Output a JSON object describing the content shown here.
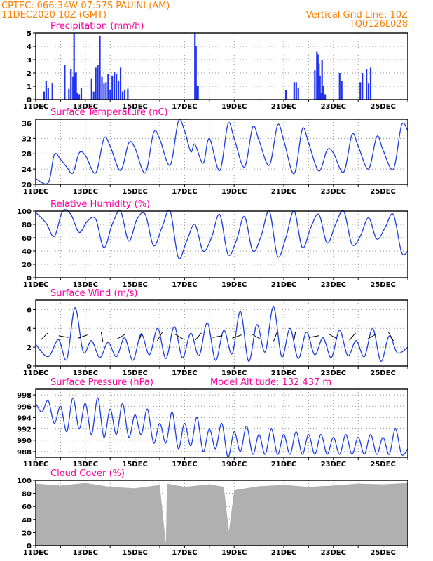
{
  "header": {
    "line1": "CPTEC:  066:34W-07:57S  PAUINI (AM)",
    "line2": "11DEC2020 10Z (GMT)",
    "grid_note": "Vertical Grid Line: 10Z",
    "run_code": "TQ0126L028"
  },
  "colors": {
    "header": "#ff8000",
    "title": "#ff00a0",
    "series": "#1f3fe0",
    "cloud": "#b0b0b0"
  },
  "x_axis": {
    "date_labels": [
      "11DEC",
      "13DEC",
      "15DEC",
      "17DEC",
      "19DEC",
      "21DEC",
      "23DEC",
      "25DEC"
    ],
    "start": "2020-12-11T10:00Z",
    "end": "2020-12-26T10:00Z"
  },
  "chart_data": [
    {
      "type": "bar",
      "title": "Precipitation (mm/h)",
      "ylim": [
        0,
        5
      ],
      "yticks": [
        0,
        1,
        2,
        3,
        4,
        5
      ],
      "grid": true,
      "series": [
        {
          "x": [
            "2020-12-11T18:00Z",
            "2020-12-11T20:00Z",
            "2020-12-11T22:00Z",
            "2020-12-12T02:00Z",
            "2020-12-12T14:00Z",
            "2020-12-12T18:00Z",
            "2020-12-12T20:00Z",
            "2020-12-12T22:00Z",
            "2020-12-12T23:00Z",
            "2020-12-13T00:00Z",
            "2020-12-13T01:00Z",
            "2020-12-13T02:00Z",
            "2020-12-13T04:00Z",
            "2020-12-13T06:00Z",
            "2020-12-13T16:00Z",
            "2020-12-13T18:00Z",
            "2020-12-13T20:00Z",
            "2020-12-13T22:00Z",
            "2020-12-14T00:00Z",
            "2020-12-14T02:00Z",
            "2020-12-14T04:00Z",
            "2020-12-14T06:00Z",
            "2020-12-14T08:00Z",
            "2020-12-14T10:00Z",
            "2020-12-14T12:00Z",
            "2020-12-14T14:00Z",
            "2020-12-14T16:00Z",
            "2020-12-14T18:00Z",
            "2020-12-14T20:00Z",
            "2020-12-14T22:00Z",
            "2020-12-15T00:00Z",
            "2020-12-15T03:00Z",
            "2020-12-17T20:00Z",
            "2020-12-17T21:00Z",
            "2020-12-17T22:00Z",
            "2020-12-17T23:00Z",
            "2020-12-21T12:00Z",
            "2020-12-21T20:00Z",
            "2020-12-21T22:00Z",
            "2020-12-22T00:00Z",
            "2020-12-22T16:00Z",
            "2020-12-22T18:00Z",
            "2020-12-22T19:00Z",
            "2020-12-22T20:00Z",
            "2020-12-22T21:00Z",
            "2020-12-22T22:00Z",
            "2020-12-22T23:00Z",
            "2020-12-23T00:00Z",
            "2020-12-23T02:00Z",
            "2020-12-23T16:00Z",
            "2020-12-23T18:00Z",
            "2020-12-24T12:00Z",
            "2020-12-24T14:00Z",
            "2020-12-24T18:00Z",
            "2020-12-24T20:00Z",
            "2020-12-24T22:00Z"
          ],
          "values": [
            0.6,
            1.4,
            0.9,
            1.2,
            2.6,
            0.8,
            2.3,
            1.7,
            5.0,
            2.0,
            2.1,
            0.5,
            0.4,
            0.9,
            1.6,
            0.6,
            2.4,
            2.6,
            4.8,
            1.7,
            1.2,
            1.3,
            1.9,
            0.7,
            1.8,
            2.1,
            1.9,
            1.4,
            2.4,
            0.6,
            0.7,
            0.8,
            5.0,
            4.0,
            1.0,
            1.0,
            0.7,
            1.3,
            1.3,
            0.9,
            2.2,
            3.6,
            3.4,
            2.7,
            1.8,
            0.5,
            3.0,
            1.0,
            0.4,
            2.0,
            1.4,
            1.3,
            2.0,
            2.3,
            1.2,
            2.4
          ]
        }
      ]
    },
    {
      "type": "line",
      "title": "Surface Temperature (nC)",
      "ylim": [
        20,
        37
      ],
      "yticks": [
        20,
        24,
        28,
        32,
        36
      ],
      "grid": true,
      "series": [
        {
          "x": [
            "2020-12-11T10:00Z",
            "2020-12-11T22:00Z",
            "2020-12-12T04:00Z",
            "2020-12-12T10:00Z",
            "2020-12-12T16:00Z",
            "2020-12-12T22:00Z",
            "2020-12-13T04:00Z",
            "2020-12-13T10:00Z",
            "2020-12-13T20:00Z",
            "2020-12-14T04:00Z",
            "2020-12-14T10:00Z",
            "2020-12-14T20:00Z",
            "2020-12-15T04:00Z",
            "2020-12-15T10:00Z",
            "2020-12-15T20:00Z",
            "2020-12-16T04:00Z",
            "2020-12-16T10:00Z",
            "2020-12-16T20:00Z",
            "2020-12-17T04:00Z",
            "2020-12-17T10:00Z",
            "2020-12-17T16:00Z",
            "2020-12-17T20:00Z",
            "2020-12-18T04:00Z",
            "2020-12-18T10:00Z",
            "2020-12-18T20:00Z",
            "2020-12-19T04:00Z",
            "2020-12-19T10:00Z",
            "2020-12-19T20:00Z",
            "2020-12-20T04:00Z",
            "2020-12-20T10:00Z",
            "2020-12-20T20:00Z",
            "2020-12-21T04:00Z",
            "2020-12-21T10:00Z",
            "2020-12-21T20:00Z",
            "2020-12-22T04:00Z",
            "2020-12-22T10:00Z",
            "2020-12-22T20:00Z",
            "2020-12-23T04:00Z",
            "2020-12-23T10:00Z",
            "2020-12-23T20:00Z",
            "2020-12-24T04:00Z",
            "2020-12-24T10:00Z",
            "2020-12-24T20:00Z",
            "2020-12-25T04:00Z",
            "2020-12-25T10:00Z",
            "2020-12-25T20:00Z",
            "2020-12-26T04:00Z",
            "2020-12-26T10:00Z"
          ],
          "values": [
            21.5,
            20.4,
            27.8,
            26.5,
            24.5,
            23.0,
            28.2,
            27.6,
            23.0,
            32.0,
            30.0,
            23.6,
            30.8,
            29.5,
            23.0,
            33.5,
            31.8,
            25.0,
            36.5,
            34.0,
            28.5,
            30.5,
            25.5,
            32.0,
            23.6,
            35.8,
            32.0,
            24.5,
            35.0,
            31.5,
            25.0,
            35.5,
            31.5,
            22.8,
            34.5,
            30.8,
            23.5,
            29.0,
            28.2,
            23.2,
            33.0,
            30.0,
            24.0,
            32.5,
            29.0,
            24.0,
            35.5,
            34.0
          ]
        }
      ]
    },
    {
      "type": "line",
      "title": "Relative Humidity (%)",
      "ylim": [
        0,
        100
      ],
      "yticks": [
        0,
        20,
        40,
        60,
        80,
        100
      ],
      "grid": true,
      "series": [
        {
          "x": [
            "2020-12-11T10:00Z",
            "2020-12-11T20:00Z",
            "2020-12-12T04:00Z",
            "2020-12-12T12:00Z",
            "2020-12-12T20:00Z",
            "2020-12-13T04:00Z",
            "2020-12-13T12:00Z",
            "2020-12-13T20:00Z",
            "2020-12-14T04:00Z",
            "2020-12-14T12:00Z",
            "2020-12-14T20:00Z",
            "2020-12-15T04:00Z",
            "2020-12-15T12:00Z",
            "2020-12-15T20:00Z",
            "2020-12-16T04:00Z",
            "2020-12-16T12:00Z",
            "2020-12-16T20:00Z",
            "2020-12-17T04:00Z",
            "2020-12-17T12:00Z",
            "2020-12-17T20:00Z",
            "2020-12-18T04:00Z",
            "2020-12-18T12:00Z",
            "2020-12-18T20:00Z",
            "2020-12-19T04:00Z",
            "2020-12-19T12:00Z",
            "2020-12-19T20:00Z",
            "2020-12-20T04:00Z",
            "2020-12-20T12:00Z",
            "2020-12-20T20:00Z",
            "2020-12-21T04:00Z",
            "2020-12-21T12:00Z",
            "2020-12-21T20:00Z",
            "2020-12-22T04:00Z",
            "2020-12-22T12:00Z",
            "2020-12-22T20:00Z",
            "2020-12-23T04:00Z",
            "2020-12-23T12:00Z",
            "2020-12-23T20:00Z",
            "2020-12-24T04:00Z",
            "2020-12-24T12:00Z",
            "2020-12-24T20:00Z",
            "2020-12-25T04:00Z",
            "2020-12-25T12:00Z",
            "2020-12-25T20:00Z",
            "2020-12-26T04:00Z",
            "2020-12-26T10:00Z"
          ],
          "values": [
            98,
            82,
            62,
            100,
            95,
            68,
            85,
            88,
            45,
            80,
            100,
            55,
            88,
            95,
            48,
            75,
            100,
            30,
            55,
            80,
            40,
            60,
            95,
            35,
            55,
            92,
            40,
            62,
            100,
            32,
            60,
            100,
            45,
            75,
            95,
            52,
            80,
            100,
            50,
            62,
            90,
            58,
            75,
            95,
            38,
            40
          ]
        }
      ]
    },
    {
      "type": "line",
      "title": "Surface Wind (m/s)",
      "ylim": [
        0,
        7
      ],
      "yticks": [
        0,
        2,
        4,
        6
      ],
      "grid": true,
      "series": [
        {
          "x": [
            "2020-12-11T10:00Z",
            "2020-12-11T22:00Z",
            "2020-12-12T08:00Z",
            "2020-12-12T16:00Z",
            "2020-12-13T00:00Z",
            "2020-12-13T08:00Z",
            "2020-12-13T16:00Z",
            "2020-12-14T00:00Z",
            "2020-12-14T08:00Z",
            "2020-12-14T16:00Z",
            "2020-12-15T00:00Z",
            "2020-12-15T08:00Z",
            "2020-12-15T16:00Z",
            "2020-12-16T00:00Z",
            "2020-12-16T08:00Z",
            "2020-12-16T16:00Z",
            "2020-12-17T00:00Z",
            "2020-12-17T08:00Z",
            "2020-12-17T16:00Z",
            "2020-12-18T00:00Z",
            "2020-12-18T08:00Z",
            "2020-12-18T16:00Z",
            "2020-12-19T00:00Z",
            "2020-12-19T08:00Z",
            "2020-12-19T16:00Z",
            "2020-12-20T00:00Z",
            "2020-12-20T08:00Z",
            "2020-12-20T16:00Z",
            "2020-12-21T00:00Z",
            "2020-12-21T08:00Z",
            "2020-12-21T16:00Z",
            "2020-12-22T00:00Z",
            "2020-12-22T08:00Z",
            "2020-12-22T16:00Z",
            "2020-12-23T00:00Z",
            "2020-12-23T08:00Z",
            "2020-12-23T16:00Z",
            "2020-12-24T00:00Z",
            "2020-12-24T08:00Z",
            "2020-12-24T16:00Z",
            "2020-12-25T00:00Z",
            "2020-12-25T08:00Z",
            "2020-12-25T16:00Z",
            "2020-12-26T00:00Z",
            "2020-12-26T10:00Z"
          ],
          "values": [
            2.3,
            1.0,
            2.8,
            0.7,
            6.2,
            1.5,
            2.7,
            0.9,
            2.5,
            1.0,
            3.0,
            0.6,
            3.4,
            1.2,
            4.0,
            0.8,
            4.2,
            0.9,
            3.5,
            1.1,
            4.6,
            0.6,
            3.8,
            1.3,
            5.8,
            0.5,
            4.4,
            1.5,
            6.3,
            1.0,
            4.0,
            0.8,
            3.6,
            1.2,
            3.0,
            0.9,
            3.8,
            1.1,
            2.7,
            1.0,
            4.0,
            0.5,
            3.2,
            1.4,
            2.0
          ]
        }
      ]
    },
    {
      "type": "line",
      "title": "Surface Pressure (hPa)",
      "annotation": "Model Altitude: 132.437 m",
      "ylim": [
        987,
        999
      ],
      "yticks": [
        988,
        990,
        992,
        994,
        996,
        998
      ],
      "grid": true,
      "series": [
        {
          "x": [
            "2020-12-11T10:00Z",
            "2020-12-11T16:00Z",
            "2020-12-11T22:00Z",
            "2020-12-12T04:00Z",
            "2020-12-12T10:00Z",
            "2020-12-12T16:00Z",
            "2020-12-12T22:00Z",
            "2020-12-13T04:00Z",
            "2020-12-13T10:00Z",
            "2020-12-13T16:00Z",
            "2020-12-13T22:00Z",
            "2020-12-14T04:00Z",
            "2020-12-14T10:00Z",
            "2020-12-14T16:00Z",
            "2020-12-14T22:00Z",
            "2020-12-15T04:00Z",
            "2020-12-15T10:00Z",
            "2020-12-15T16:00Z",
            "2020-12-15T22:00Z",
            "2020-12-16T04:00Z",
            "2020-12-16T10:00Z",
            "2020-12-16T16:00Z",
            "2020-12-16T22:00Z",
            "2020-12-17T04:00Z",
            "2020-12-17T10:00Z",
            "2020-12-17T16:00Z",
            "2020-12-17T22:00Z",
            "2020-12-18T04:00Z",
            "2020-12-18T10:00Z",
            "2020-12-18T16:00Z",
            "2020-12-18T22:00Z",
            "2020-12-19T04:00Z",
            "2020-12-19T10:00Z",
            "2020-12-19T16:00Z",
            "2020-12-19T22:00Z",
            "2020-12-20T04:00Z",
            "2020-12-20T10:00Z",
            "2020-12-20T16:00Z",
            "2020-12-20T22:00Z",
            "2020-12-21T04:00Z",
            "2020-12-21T10:00Z",
            "2020-12-21T16:00Z",
            "2020-12-21T22:00Z",
            "2020-12-22T04:00Z",
            "2020-12-22T10:00Z",
            "2020-12-22T16:00Z",
            "2020-12-22T22:00Z",
            "2020-12-23T04:00Z",
            "2020-12-23T10:00Z",
            "2020-12-23T16:00Z",
            "2020-12-23T22:00Z",
            "2020-12-24T04:00Z",
            "2020-12-24T10:00Z",
            "2020-12-24T16:00Z",
            "2020-12-24T22:00Z",
            "2020-12-25T04:00Z",
            "2020-12-25T10:00Z",
            "2020-12-25T16:00Z",
            "2020-12-25T22:00Z",
            "2020-12-26T04:00Z",
            "2020-12-26T10:00Z"
          ],
          "values": [
            996.5,
            995.0,
            997.0,
            993.0,
            996.0,
            991.5,
            997.5,
            992.0,
            996.5,
            991.0,
            997.5,
            990.5,
            995.5,
            991.0,
            996.5,
            990.5,
            994.5,
            991.0,
            995.5,
            989.5,
            993.0,
            989.5,
            995.0,
            988.5,
            993.0,
            989.0,
            994.0,
            988.0,
            992.0,
            988.5,
            993.0,
            987.0,
            991.5,
            988.0,
            992.5,
            987.5,
            991.0,
            987.5,
            992.0,
            987.5,
            991.0,
            987.5,
            991.5,
            987.5,
            991.0,
            987.5,
            991.0,
            987.5,
            990.5,
            987.5,
            991.0,
            987.5,
            990.5,
            987.5,
            991.0,
            987.5,
            990.5,
            987.5,
            992.0,
            987.5,
            988.5
          ]
        }
      ]
    },
    {
      "type": "area",
      "title": "Cloud Cover (%)",
      "ylim": [
        0,
        100
      ],
      "yticks": [
        0,
        20,
        40,
        60,
        80,
        100
      ],
      "grid": true,
      "series": [
        {
          "x": [
            "2020-12-11T10:00Z",
            "2020-12-12T10:00Z",
            "2020-12-13T10:00Z",
            "2020-12-14T10:00Z",
            "2020-12-15T10:00Z",
            "2020-12-16T10:00Z",
            "2020-12-16T16:00Z",
            "2020-12-16T17:00Z",
            "2020-12-17T10:00Z",
            "2020-12-18T10:00Z",
            "2020-12-19T00:00Z",
            "2020-12-19T05:00Z",
            "2020-12-19T10:00Z",
            "2020-12-20T10:00Z",
            "2020-12-21T10:00Z",
            "2020-12-22T10:00Z",
            "2020-12-23T10:00Z",
            "2020-12-24T10:00Z",
            "2020-12-25T10:00Z",
            "2020-12-26T10:00Z"
          ],
          "values": [
            95,
            92,
            96,
            90,
            88,
            93,
            2,
            95,
            90,
            94,
            90,
            22,
            85,
            91,
            93,
            90,
            92,
            95,
            94,
            96
          ]
        }
      ]
    }
  ]
}
